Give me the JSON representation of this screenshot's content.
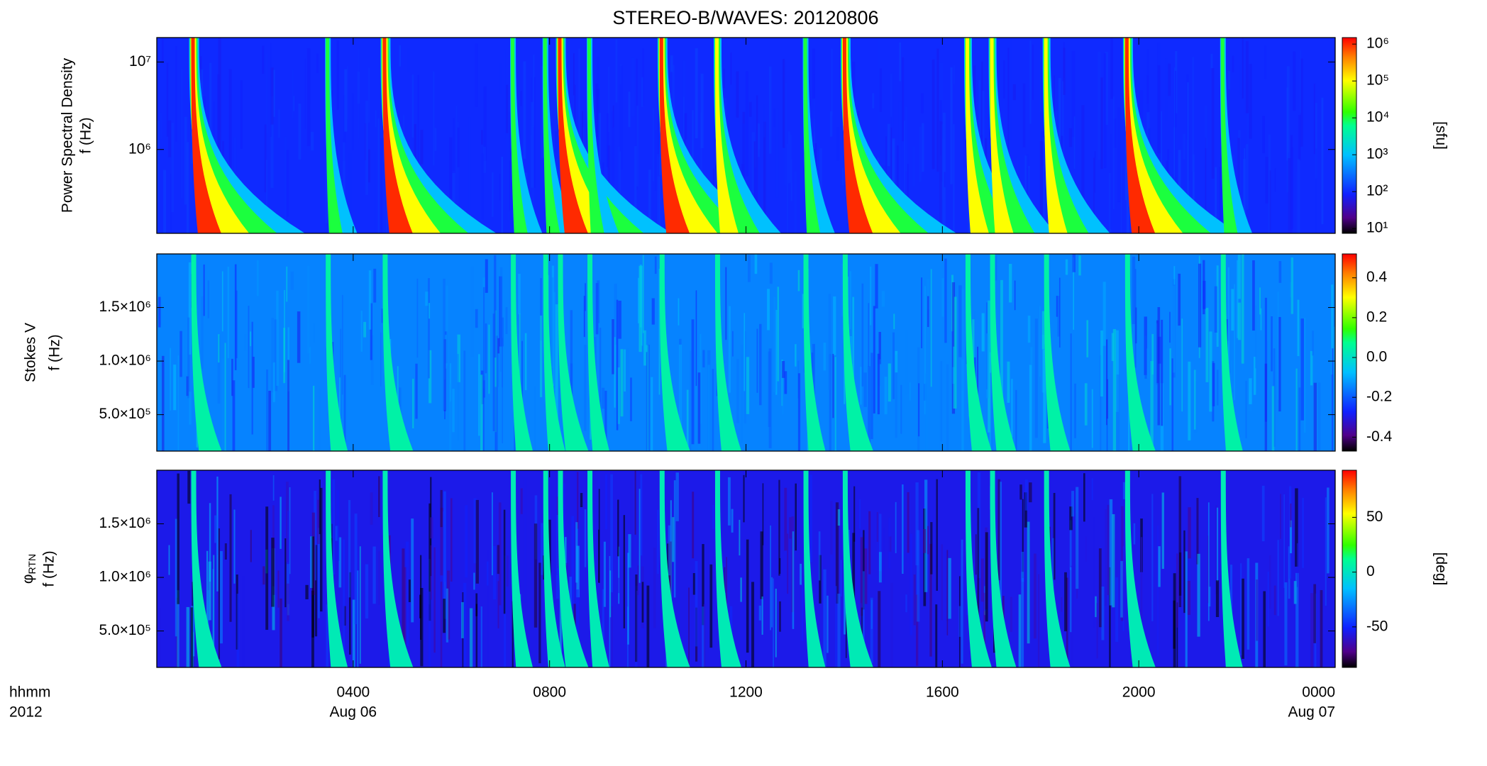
{
  "chart_data": [
    {
      "type": "heatmap",
      "title": "STEREO-B/WAVES: 20120806",
      "ylabel": [
        "Power Spectral Density",
        "f (Hz)"
      ],
      "ylog": true,
      "ylim": [
        110000,
        19000000
      ],
      "yticks": [
        {
          "value": 1000000,
          "label": "10⁶"
        },
        {
          "value": 10000000,
          "label": "10⁷"
        }
      ],
      "clog": true,
      "clim": [
        7.4,
        1500000
      ],
      "cticks": [
        {
          "value": 10,
          "label": "10¹"
        },
        {
          "value": 100,
          "label": "10²"
        },
        {
          "value": 1000,
          "label": "10³"
        },
        {
          "value": 10000,
          "label": "10⁴"
        },
        {
          "value": 100000,
          "label": "10⁵"
        },
        {
          "value": 1000000,
          "label": "10⁶"
        }
      ],
      "clabel": "[sfu]",
      "colormap": [
        [
          0,
          "#000000"
        ],
        [
          0.08,
          "#50008a"
        ],
        [
          0.2,
          "#1020ff"
        ],
        [
          0.4,
          "#00c0ff"
        ],
        [
          0.55,
          "#00ff90"
        ],
        [
          0.62,
          "#30ff00"
        ],
        [
          0.78,
          "#ffff00"
        ],
        [
          0.9,
          "#ff8000"
        ],
        [
          1,
          "#ff0000"
        ]
      ],
      "background": 100,
      "bursts": {
        "times": [
          0.73,
          3.47,
          4.63,
          7.24,
          7.9,
          8.2,
          8.8,
          10.27,
          11.4,
          13.2,
          14.0,
          16.5,
          17.0,
          18.1,
          19.75,
          21.7
        ],
        "peak": [
          1000000,
          10000,
          1000000,
          10000,
          10000,
          1000000,
          10000,
          1000000,
          100000,
          10000,
          1000000,
          100000,
          100000,
          100000,
          1000000,
          10000
        ]
      }
    },
    {
      "type": "heatmap",
      "ylabel": [
        "Stokes V",
        "f (Hz)"
      ],
      "ylim": [
        160000,
        2000000
      ],
      "yticks": [
        {
          "value": 500000,
          "label": "5.0×10⁵"
        },
        {
          "value": 1000000,
          "label": "1.0×10⁶"
        },
        {
          "value": 1500000,
          "label": "1.5×10⁶"
        }
      ],
      "clim": [
        -0.47,
        0.52
      ],
      "cticks": [
        0.4,
        0.2,
        {
          "value": 0,
          "label": "0.0"
        },
        -0.2,
        -0.4
      ],
      "background": -0.15
    },
    {
      "type": "heatmap",
      "ylabel_symbol": "φ",
      "ylabel_subscript": "RTN",
      "ylabel": [
        "f (Hz)"
      ],
      "ylim": [
        160000,
        2000000
      ],
      "yticks": [
        {
          "value": 500000,
          "label": "5.0×10⁵"
        },
        {
          "value": 1000000,
          "label": "1.0×10⁶"
        },
        {
          "value": 1500000,
          "label": "1.5×10⁶"
        }
      ],
      "clim": [
        -87,
        93
      ],
      "cticks": [
        50,
        0,
        -50
      ],
      "clabel": "[deg]",
      "background": -55,
      "xlim": [
        0,
        24
      ],
      "xticks": [
        {
          "value": 4,
          "label": "0400"
        },
        {
          "value": 8,
          "label": "0800"
        },
        {
          "value": 12,
          "label": "1200"
        },
        {
          "value": 16,
          "label": "1600"
        },
        {
          "value": 20,
          "label": "2000"
        },
        {
          "value": 24,
          "label": "0000"
        }
      ],
      "xdates": [
        {
          "value": 4,
          "label": "Aug 06"
        },
        {
          "value": 24,
          "label": "Aug 07"
        }
      ],
      "xlabel": [
        "hhmm",
        "2012"
      ]
    }
  ]
}
